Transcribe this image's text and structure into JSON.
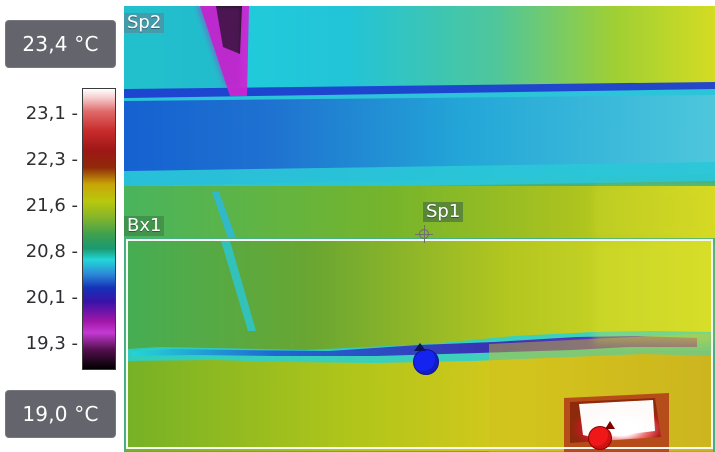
{
  "temperature_range": {
    "max_label": "23,4 °C",
    "min_label": "19,0 °C"
  },
  "scale": {
    "ticks": [
      "23,1 -",
      "22,3 -",
      "21,6 -",
      "20,8 -",
      "20,1 -",
      "19,3 -"
    ]
  },
  "measurements": {
    "spot_1": "Sp1",
    "spot_2": "Sp2",
    "box_1": "Bx1"
  },
  "colors": {
    "panel_bg": "#64646c",
    "label_text": "#2f2f33",
    "overlay_text": "#ffffff",
    "cold_marker": "#1423f0",
    "hot_marker": "#ef1717",
    "box_outline": "#f5f7f5"
  },
  "icons": {
    "spot_1": "crosshair-icon",
    "cold_marker": "cold-spot-marker-icon",
    "hot_marker": "hot-spot-marker-icon"
  }
}
